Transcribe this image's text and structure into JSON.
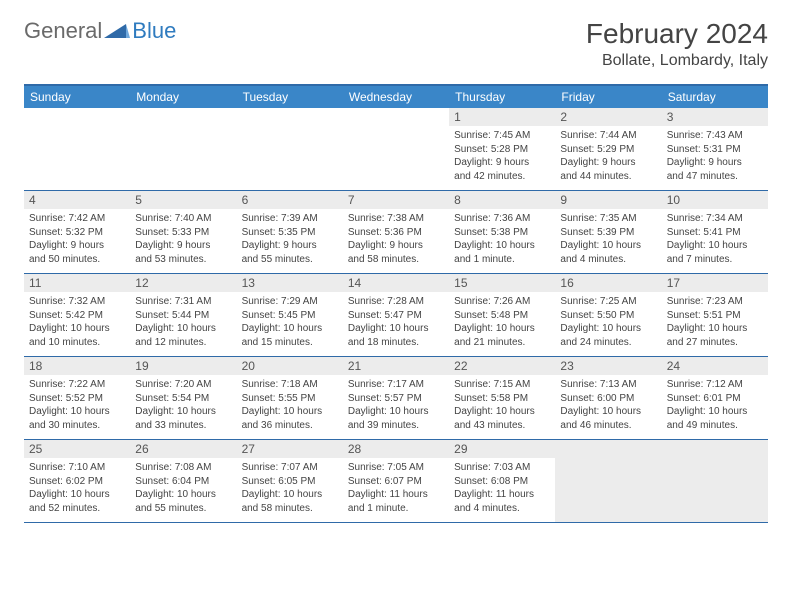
{
  "logo": {
    "text1": "General",
    "text2": "Blue"
  },
  "title": "February 2024",
  "location": "Bollate, Lombardy, Italy",
  "colors": {
    "headerBg": "#3a86c8",
    "border": "#2f6aa8",
    "dayBg": "#ececec"
  },
  "dayHeaders": [
    "Sunday",
    "Monday",
    "Tuesday",
    "Wednesday",
    "Thursday",
    "Friday",
    "Saturday"
  ],
  "weeks": [
    [
      {
        "empty": true
      },
      {
        "empty": true
      },
      {
        "empty": true
      },
      {
        "empty": true
      },
      {
        "num": "1",
        "sunrise": "Sunrise: 7:45 AM",
        "sunset": "Sunset: 5:28 PM",
        "day1": "Daylight: 9 hours",
        "day2": "and 42 minutes."
      },
      {
        "num": "2",
        "sunrise": "Sunrise: 7:44 AM",
        "sunset": "Sunset: 5:29 PM",
        "day1": "Daylight: 9 hours",
        "day2": "and 44 minutes."
      },
      {
        "num": "3",
        "sunrise": "Sunrise: 7:43 AM",
        "sunset": "Sunset: 5:31 PM",
        "day1": "Daylight: 9 hours",
        "day2": "and 47 minutes."
      }
    ],
    [
      {
        "num": "4",
        "sunrise": "Sunrise: 7:42 AM",
        "sunset": "Sunset: 5:32 PM",
        "day1": "Daylight: 9 hours",
        "day2": "and 50 minutes."
      },
      {
        "num": "5",
        "sunrise": "Sunrise: 7:40 AM",
        "sunset": "Sunset: 5:33 PM",
        "day1": "Daylight: 9 hours",
        "day2": "and 53 minutes."
      },
      {
        "num": "6",
        "sunrise": "Sunrise: 7:39 AM",
        "sunset": "Sunset: 5:35 PM",
        "day1": "Daylight: 9 hours",
        "day2": "and 55 minutes."
      },
      {
        "num": "7",
        "sunrise": "Sunrise: 7:38 AM",
        "sunset": "Sunset: 5:36 PM",
        "day1": "Daylight: 9 hours",
        "day2": "and 58 minutes."
      },
      {
        "num": "8",
        "sunrise": "Sunrise: 7:36 AM",
        "sunset": "Sunset: 5:38 PM",
        "day1": "Daylight: 10 hours",
        "day2": "and 1 minute."
      },
      {
        "num": "9",
        "sunrise": "Sunrise: 7:35 AM",
        "sunset": "Sunset: 5:39 PM",
        "day1": "Daylight: 10 hours",
        "day2": "and 4 minutes."
      },
      {
        "num": "10",
        "sunrise": "Sunrise: 7:34 AM",
        "sunset": "Sunset: 5:41 PM",
        "day1": "Daylight: 10 hours",
        "day2": "and 7 minutes."
      }
    ],
    [
      {
        "num": "11",
        "sunrise": "Sunrise: 7:32 AM",
        "sunset": "Sunset: 5:42 PM",
        "day1": "Daylight: 10 hours",
        "day2": "and 10 minutes."
      },
      {
        "num": "12",
        "sunrise": "Sunrise: 7:31 AM",
        "sunset": "Sunset: 5:44 PM",
        "day1": "Daylight: 10 hours",
        "day2": "and 12 minutes."
      },
      {
        "num": "13",
        "sunrise": "Sunrise: 7:29 AM",
        "sunset": "Sunset: 5:45 PM",
        "day1": "Daylight: 10 hours",
        "day2": "and 15 minutes."
      },
      {
        "num": "14",
        "sunrise": "Sunrise: 7:28 AM",
        "sunset": "Sunset: 5:47 PM",
        "day1": "Daylight: 10 hours",
        "day2": "and 18 minutes."
      },
      {
        "num": "15",
        "sunrise": "Sunrise: 7:26 AM",
        "sunset": "Sunset: 5:48 PM",
        "day1": "Daylight: 10 hours",
        "day2": "and 21 minutes."
      },
      {
        "num": "16",
        "sunrise": "Sunrise: 7:25 AM",
        "sunset": "Sunset: 5:50 PM",
        "day1": "Daylight: 10 hours",
        "day2": "and 24 minutes."
      },
      {
        "num": "17",
        "sunrise": "Sunrise: 7:23 AM",
        "sunset": "Sunset: 5:51 PM",
        "day1": "Daylight: 10 hours",
        "day2": "and 27 minutes."
      }
    ],
    [
      {
        "num": "18",
        "sunrise": "Sunrise: 7:22 AM",
        "sunset": "Sunset: 5:52 PM",
        "day1": "Daylight: 10 hours",
        "day2": "and 30 minutes."
      },
      {
        "num": "19",
        "sunrise": "Sunrise: 7:20 AM",
        "sunset": "Sunset: 5:54 PM",
        "day1": "Daylight: 10 hours",
        "day2": "and 33 minutes."
      },
      {
        "num": "20",
        "sunrise": "Sunrise: 7:18 AM",
        "sunset": "Sunset: 5:55 PM",
        "day1": "Daylight: 10 hours",
        "day2": "and 36 minutes."
      },
      {
        "num": "21",
        "sunrise": "Sunrise: 7:17 AM",
        "sunset": "Sunset: 5:57 PM",
        "day1": "Daylight: 10 hours",
        "day2": "and 39 minutes."
      },
      {
        "num": "22",
        "sunrise": "Sunrise: 7:15 AM",
        "sunset": "Sunset: 5:58 PM",
        "day1": "Daylight: 10 hours",
        "day2": "and 43 minutes."
      },
      {
        "num": "23",
        "sunrise": "Sunrise: 7:13 AM",
        "sunset": "Sunset: 6:00 PM",
        "day1": "Daylight: 10 hours",
        "day2": "and 46 minutes."
      },
      {
        "num": "24",
        "sunrise": "Sunrise: 7:12 AM",
        "sunset": "Sunset: 6:01 PM",
        "day1": "Daylight: 10 hours",
        "day2": "and 49 minutes."
      }
    ],
    [
      {
        "num": "25",
        "sunrise": "Sunrise: 7:10 AM",
        "sunset": "Sunset: 6:02 PM",
        "day1": "Daylight: 10 hours",
        "day2": "and 52 minutes."
      },
      {
        "num": "26",
        "sunrise": "Sunrise: 7:08 AM",
        "sunset": "Sunset: 6:04 PM",
        "day1": "Daylight: 10 hours",
        "day2": "and 55 minutes."
      },
      {
        "num": "27",
        "sunrise": "Sunrise: 7:07 AM",
        "sunset": "Sunset: 6:05 PM",
        "day1": "Daylight: 10 hours",
        "day2": "and 58 minutes."
      },
      {
        "num": "28",
        "sunrise": "Sunrise: 7:05 AM",
        "sunset": "Sunset: 6:07 PM",
        "day1": "Daylight: 11 hours",
        "day2": "and 1 minute."
      },
      {
        "num": "29",
        "sunrise": "Sunrise: 7:03 AM",
        "sunset": "Sunset: 6:08 PM",
        "day1": "Daylight: 11 hours",
        "day2": "and 4 minutes."
      },
      {
        "trail": true
      },
      {
        "trail": true
      }
    ]
  ]
}
